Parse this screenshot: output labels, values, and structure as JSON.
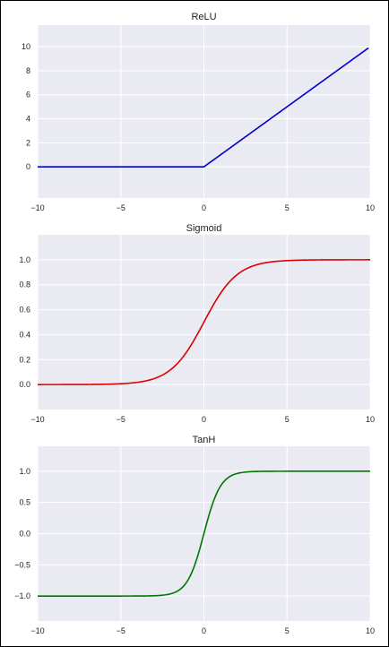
{
  "chart_data": [
    {
      "type": "line",
      "title": "ReLU",
      "xlabel": "",
      "ylabel": "",
      "xlim": [
        -10,
        10
      ],
      "ylim": [
        -2.6,
        11.8
      ],
      "xticks": [
        -10,
        -5,
        0,
        5,
        10
      ],
      "xtick_labels": [
        "−10",
        "−5",
        "0",
        "5",
        "10"
      ],
      "yticks": [
        0,
        2,
        4,
        6,
        8,
        10
      ],
      "ytick_labels": [
        "0",
        "2",
        "4",
        "6",
        "8",
        "10"
      ],
      "grid": true,
      "legend": "none",
      "function": "relu",
      "series": [
        {
          "color": "#0000cc",
          "x": [
            -10,
            -8,
            -6,
            -4,
            -2,
            0,
            2,
            4,
            6,
            8,
            9.9
          ],
          "y": [
            0,
            0,
            0,
            0,
            0,
            0,
            2,
            4,
            6,
            8,
            9.9
          ]
        }
      ]
    },
    {
      "type": "line",
      "title": "Sigmoid",
      "xlabel": "",
      "ylabel": "",
      "xlim": [
        -10,
        10
      ],
      "ylim": [
        -0.2,
        1.2
      ],
      "xticks": [
        -10,
        -5,
        0,
        5,
        10
      ],
      "xtick_labels": [
        "−10",
        "−5",
        "0",
        "5",
        "10"
      ],
      "yticks": [
        0.0,
        0.2,
        0.4,
        0.6,
        0.8,
        1.0
      ],
      "ytick_labels": [
        "0.0",
        "0.2",
        "0.4",
        "0.6",
        "0.8",
        "1.0"
      ],
      "grid": true,
      "legend": "none",
      "function": "sigmoid",
      "series": [
        {
          "color": "#dd0000",
          "x": [
            -10,
            -6,
            -4,
            -3,
            -2,
            -1,
            0,
            1,
            2,
            3,
            4,
            6,
            10
          ],
          "y": [
            0.0,
            0.0025,
            0.018,
            0.047,
            0.119,
            0.269,
            0.5,
            0.731,
            0.881,
            0.953,
            0.982,
            0.9975,
            1.0
          ]
        }
      ]
    },
    {
      "type": "line",
      "title": "TanH",
      "xlabel": "",
      "ylabel": "",
      "xlim": [
        -10,
        10
      ],
      "ylim": [
        -1.4,
        1.4
      ],
      "xticks": [
        -10,
        -5,
        0,
        5,
        10
      ],
      "xtick_labels": [
        "−10",
        "−5",
        "0",
        "5",
        "10"
      ],
      "yticks": [
        -1.0,
        -0.5,
        0.0,
        0.5,
        1.0
      ],
      "ytick_labels": [
        "−1.0",
        "−0.5",
        "0.0",
        "0.5",
        "1.0"
      ],
      "grid": true,
      "legend": "none",
      "function": "tanh",
      "series": [
        {
          "color": "#007700",
          "x": [
            -10,
            -4,
            -3,
            -2,
            -1,
            0,
            1,
            2,
            3,
            4,
            10
          ],
          "y": [
            -1.0,
            -0.999,
            -0.995,
            -0.964,
            -0.762,
            0.0,
            0.762,
            0.964,
            0.995,
            0.999,
            1.0
          ]
        }
      ]
    }
  ]
}
